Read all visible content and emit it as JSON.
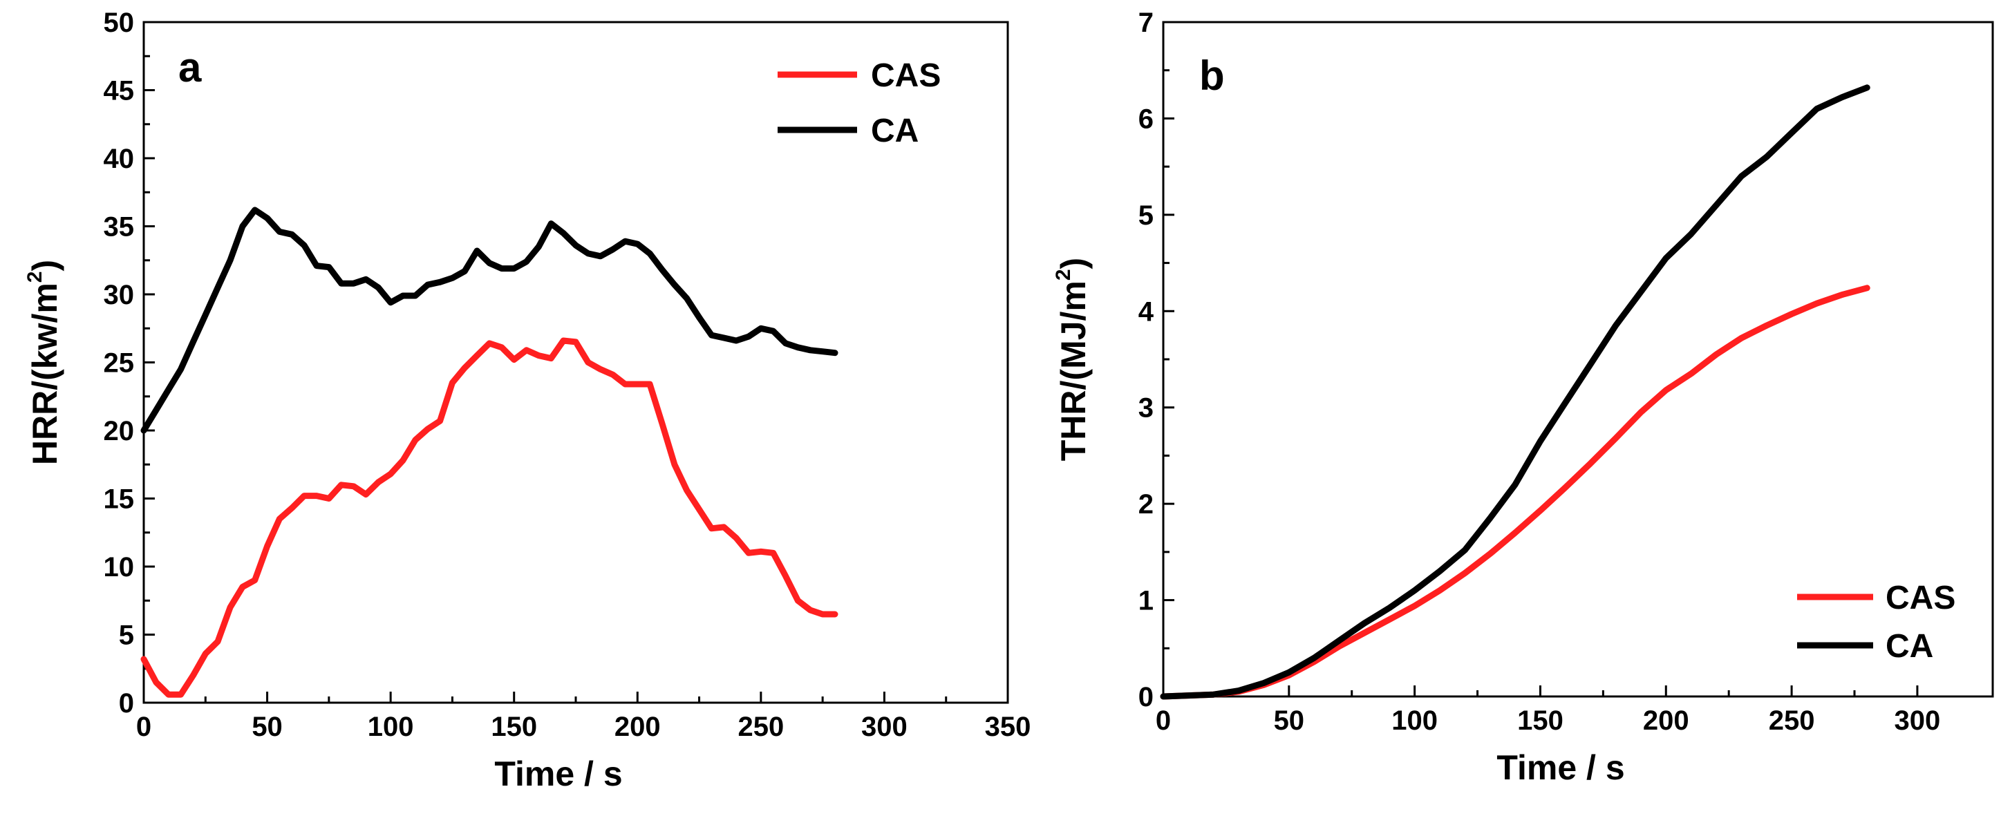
{
  "chart_data": [
    {
      "type": "line",
      "panel": "a",
      "xlabel": "Time / s",
      "ylabel_main": "HRR/(kw/m",
      "ylabel_sup": "2",
      "ylabel_end": ")",
      "xlim": [
        0,
        350
      ],
      "ylim": [
        0,
        50
      ],
      "xticks": [
        0,
        50,
        100,
        150,
        200,
        250,
        300,
        350
      ],
      "yticks": [
        0,
        5,
        10,
        15,
        20,
        25,
        30,
        35,
        40,
        45,
        50
      ],
      "grid": false,
      "legend_position": "top-right",
      "series": [
        {
          "name": "CAS",
          "color": "#ff2020",
          "points": [
            [
              0,
              3.2
            ],
            [
              5,
              1.5
            ],
            [
              10,
              0.6
            ],
            [
              15,
              0.6
            ],
            [
              20,
              2.0
            ],
            [
              25,
              3.6
            ],
            [
              30,
              4.5
            ],
            [
              35,
              7.0
            ],
            [
              40,
              8.5
            ],
            [
              45,
              9.0
            ],
            [
              50,
              11.5
            ],
            [
              55,
              13.5
            ],
            [
              60,
              14.3
            ],
            [
              65,
              15.2
            ],
            [
              70,
              15.2
            ],
            [
              75,
              15.0
            ],
            [
              80,
              16.0
            ],
            [
              85,
              15.9
            ],
            [
              90,
              15.3
            ],
            [
              95,
              16.2
            ],
            [
              100,
              16.8
            ],
            [
              105,
              17.8
            ],
            [
              110,
              19.3
            ],
            [
              115,
              20.1
            ],
            [
              120,
              20.7
            ],
            [
              125,
              23.5
            ],
            [
              130,
              24.6
            ],
            [
              135,
              25.5
            ],
            [
              140,
              26.4
            ],
            [
              145,
              26.1
            ],
            [
              150,
              25.2
            ],
            [
              155,
              25.9
            ],
            [
              160,
              25.5
            ],
            [
              165,
              25.3
            ],
            [
              170,
              26.6
            ],
            [
              175,
              26.5
            ],
            [
              180,
              25.0
            ],
            [
              185,
              24.5
            ],
            [
              190,
              24.1
            ],
            [
              195,
              23.4
            ],
            [
              200,
              23.4
            ],
            [
              205,
              23.4
            ],
            [
              210,
              20.5
            ],
            [
              215,
              17.5
            ],
            [
              220,
              15.6
            ],
            [
              225,
              14.2
            ],
            [
              230,
              12.8
            ],
            [
              235,
              12.9
            ],
            [
              240,
              12.1
            ],
            [
              245,
              11.0
            ],
            [
              250,
              11.1
            ],
            [
              255,
              11.0
            ],
            [
              260,
              9.3
            ],
            [
              265,
              7.5
            ],
            [
              270,
              6.8
            ],
            [
              275,
              6.5
            ],
            [
              280,
              6.5
            ]
          ]
        },
        {
          "name": "CA",
          "color": "#000000",
          "points": [
            [
              0,
              20.0
            ],
            [
              5,
              21.5
            ],
            [
              10,
              23.0
            ],
            [
              15,
              24.5
            ],
            [
              20,
              26.5
            ],
            [
              25,
              28.5
            ],
            [
              30,
              30.5
            ],
            [
              35,
              32.5
            ],
            [
              40,
              35.0
            ],
            [
              45,
              36.2
            ],
            [
              50,
              35.6
            ],
            [
              55,
              34.6
            ],
            [
              60,
              34.4
            ],
            [
              65,
              33.6
            ],
            [
              70,
              32.1
            ],
            [
              75,
              32.0
            ],
            [
              80,
              30.8
            ],
            [
              85,
              30.8
            ],
            [
              90,
              31.1
            ],
            [
              95,
              30.5
            ],
            [
              100,
              29.4
            ],
            [
              105,
              29.9
            ],
            [
              110,
              29.9
            ],
            [
              115,
              30.7
            ],
            [
              120,
              30.9
            ],
            [
              125,
              31.2
            ],
            [
              130,
              31.7
            ],
            [
              135,
              33.2
            ],
            [
              140,
              32.3
            ],
            [
              145,
              31.9
            ],
            [
              150,
              31.9
            ],
            [
              155,
              32.4
            ],
            [
              160,
              33.5
            ],
            [
              165,
              35.2
            ],
            [
              170,
              34.5
            ],
            [
              175,
              33.6
            ],
            [
              180,
              33.0
            ],
            [
              185,
              32.8
            ],
            [
              190,
              33.3
            ],
            [
              195,
              33.9
            ],
            [
              200,
              33.7
            ],
            [
              205,
              33.0
            ],
            [
              210,
              31.8
            ],
            [
              215,
              30.7
            ],
            [
              220,
              29.7
            ],
            [
              225,
              28.3
            ],
            [
              230,
              27.0
            ],
            [
              235,
              26.8
            ],
            [
              240,
              26.6
            ],
            [
              245,
              26.9
            ],
            [
              250,
              27.5
            ],
            [
              255,
              27.3
            ],
            [
              260,
              26.4
            ],
            [
              265,
              26.1
            ],
            [
              270,
              25.9
            ],
            [
              275,
              25.8
            ],
            [
              280,
              25.7
            ]
          ]
        }
      ]
    },
    {
      "type": "line",
      "panel": "b",
      "xlabel": "Time / s",
      "ylabel_main": "THR/(MJ/m",
      "ylabel_sup": "2",
      "ylabel_end": ")",
      "xlim": [
        0,
        330
      ],
      "ylim": [
        0,
        7
      ],
      "xticks": [
        0,
        50,
        100,
        150,
        200,
        250,
        300
      ],
      "yticks": [
        0,
        1,
        2,
        3,
        4,
        5,
        6,
        7
      ],
      "grid": false,
      "legend_position": "bottom-right",
      "series": [
        {
          "name": "CAS",
          "color": "#ff2020",
          "points": [
            [
              0,
              0.0
            ],
            [
              10,
              0.01
            ],
            [
              20,
              0.02
            ],
            [
              30,
              0.05
            ],
            [
              40,
              0.12
            ],
            [
              50,
              0.22
            ],
            [
              60,
              0.36
            ],
            [
              70,
              0.52
            ],
            [
              80,
              0.66
            ],
            [
              90,
              0.8
            ],
            [
              100,
              0.94
            ],
            [
              110,
              1.1
            ],
            [
              120,
              1.28
            ],
            [
              130,
              1.48
            ],
            [
              140,
              1.7
            ],
            [
              150,
              1.93
            ],
            [
              160,
              2.17
            ],
            [
              170,
              2.42
            ],
            [
              180,
              2.68
            ],
            [
              190,
              2.95
            ],
            [
              200,
              3.18
            ],
            [
              210,
              3.35
            ],
            [
              220,
              3.55
            ],
            [
              230,
              3.72
            ],
            [
              240,
              3.85
            ],
            [
              250,
              3.97
            ],
            [
              260,
              4.08
            ],
            [
              270,
              4.17
            ],
            [
              280,
              4.24
            ]
          ]
        },
        {
          "name": "CA",
          "color": "#000000",
          "points": [
            [
              0,
              0.0
            ],
            [
              10,
              0.01
            ],
            [
              20,
              0.02
            ],
            [
              30,
              0.06
            ],
            [
              40,
              0.14
            ],
            [
              50,
              0.25
            ],
            [
              60,
              0.4
            ],
            [
              70,
              0.58
            ],
            [
              80,
              0.76
            ],
            [
              90,
              0.92
            ],
            [
              100,
              1.1
            ],
            [
              110,
              1.3
            ],
            [
              120,
              1.52
            ],
            [
              130,
              1.85
            ],
            [
              140,
              2.2
            ],
            [
              150,
              2.65
            ],
            [
              160,
              3.05
            ],
            [
              170,
              3.45
            ],
            [
              180,
              3.85
            ],
            [
              190,
              4.2
            ],
            [
              200,
              4.55
            ],
            [
              210,
              4.8
            ],
            [
              220,
              5.1
            ],
            [
              230,
              5.4
            ],
            [
              240,
              5.6
            ],
            [
              250,
              5.85
            ],
            [
              260,
              6.1
            ],
            [
              270,
              6.22
            ],
            [
              280,
              6.32
            ]
          ]
        }
      ]
    }
  ]
}
